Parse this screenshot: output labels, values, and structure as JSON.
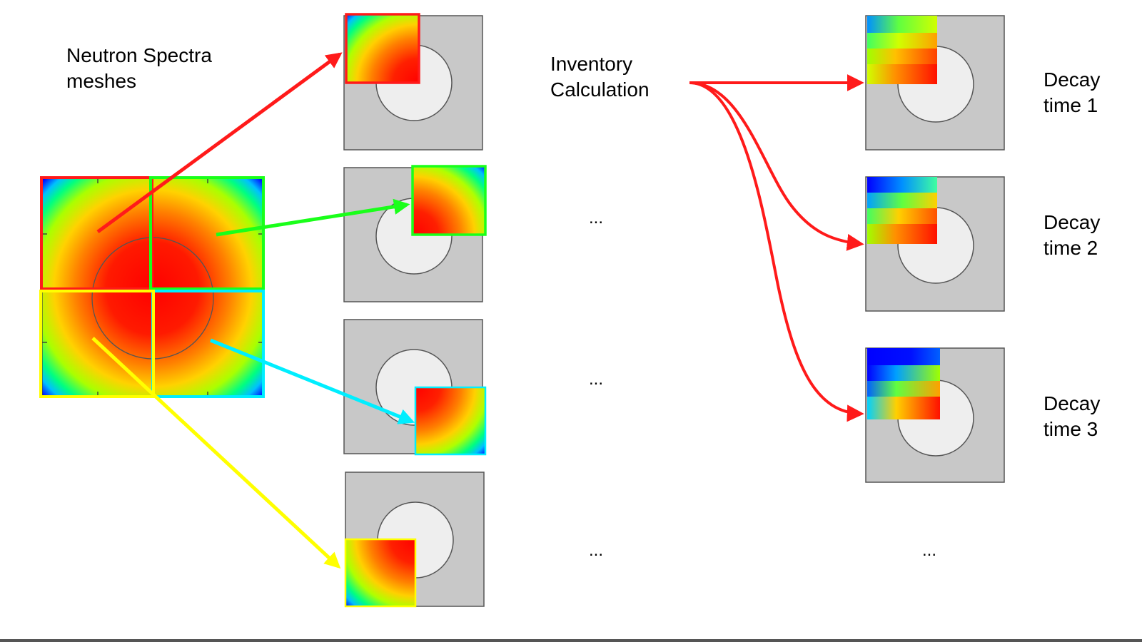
{
  "labels": {
    "neutron_spectra": "Neutron Spectra\nmeshes",
    "inventory": "Inventory\nCalculation",
    "decay_1": "Decay\ntime 1",
    "decay_2": "Decay\ntime 2",
    "decay_3": "Decay\ntime 3",
    "ellipsis": "..."
  },
  "colors": {
    "red": "#ff1a1a",
    "green": "#1aff1a",
    "cyan": "#00eeff",
    "yellow": "#ffff00",
    "panel_fill": "#c8c8c8",
    "circle_fill": "#eeeeee"
  }
}
